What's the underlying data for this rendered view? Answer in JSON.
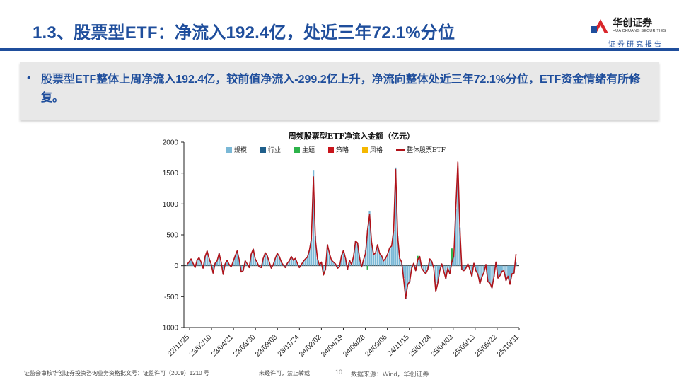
{
  "header": {
    "title": "1.3、股票型ETF：净流入192.4亿，处近三年72.1%分位",
    "logo_cn": "华创证券",
    "logo_en": "HUA CHUANG SECURITIES",
    "subtag": "证券研究报告",
    "colors": {
      "brand": "#1f4e9c",
      "logo_red": "#d9262b"
    }
  },
  "summary": {
    "bullet": "•",
    "text": "股票型ETF整体上周净流入192.4亿，较前值净流入-299.2亿上升，净流向整体处近三年72.1%分位，ETF资金情绪有所修复。"
  },
  "footer": {
    "license": "证监会审核华创证券投资咨询业务资格批文号：证监许可（2009）1210 号",
    "notice": "未经许可，禁止转载",
    "page": "10",
    "source": "数据来源：Wind，华创证券"
  },
  "chart_data": {
    "type": "bar",
    "title": "周频股票型ETF净流入金额（亿元）",
    "ylim": [
      -1000,
      2000
    ],
    "yticks": [
      -1000,
      -500,
      0,
      500,
      1000,
      1500,
      2000
    ],
    "x_tick_labels": [
      "22/11/25",
      "23/02/10",
      "23/04/21",
      "23/06/30",
      "23/09/08",
      "23/11/24",
      "24/02/02",
      "24/04/19",
      "24/06/28",
      "24/09/06",
      "24/11/15",
      "25/01/24",
      "25/04/03",
      "25/06/13",
      "25/08/22",
      "25/10/31"
    ],
    "legend_position": "top",
    "grid": false,
    "series": [
      {
        "name": "规模",
        "kind": "bar",
        "color": "#7ab8d6",
        "values": [
          20,
          60,
          110,
          40,
          -30,
          90,
          130,
          60,
          -40,
          150,
          240,
          120,
          30,
          -120,
          40,
          80,
          200,
          60,
          -140,
          30,
          90,
          20,
          -20,
          70,
          160,
          240,
          100,
          -100,
          -80,
          80,
          30,
          -30,
          190,
          270,
          110,
          50,
          -20,
          -30,
          120,
          210,
          160,
          60,
          -40,
          20,
          120,
          200,
          150,
          60,
          10,
          -30,
          40,
          80,
          150,
          90,
          120,
          40,
          -30,
          20,
          70,
          110,
          140,
          250,
          440,
          1540,
          480,
          120,
          10,
          60,
          -90,
          -60,
          340,
          200,
          90,
          60,
          30,
          -40,
          -20,
          160,
          250,
          120,
          -60,
          90,
          20,
          150,
          400,
          370,
          130,
          -20,
          100,
          260,
          580,
          890,
          380,
          180,
          210,
          340,
          200,
          160,
          80,
          120,
          190,
          290,
          320,
          580,
          1590,
          480,
          120,
          60,
          -200,
          -520,
          -300,
          -260,
          -40,
          40,
          -80,
          100,
          90,
          -40,
          -90,
          -130,
          -60,
          110,
          70,
          -40,
          -400,
          -280,
          -80,
          30,
          -90,
          -210,
          -40,
          -130,
          60,
          160,
          920,
          1570,
          620,
          -60,
          -80,
          -40,
          30,
          -60,
          -170,
          40,
          -80,
          -140,
          -290,
          -180,
          -110,
          20,
          -260,
          -280,
          -360,
          -180,
          60,
          -200,
          -160,
          -90,
          -80,
          -240,
          -170,
          -300,
          -130,
          -120,
          50
        ],
        "note": "近似读数"
      },
      {
        "name": "行业",
        "kind": "bar",
        "color": "#1f5f8b",
        "values": [
          0,
          0,
          0,
          0,
          0,
          0,
          0,
          0,
          0,
          0,
          0,
          0,
          0,
          0,
          0,
          0,
          0,
          0,
          0,
          0,
          0,
          0,
          0,
          0,
          0,
          0,
          0,
          0,
          0,
          0,
          0,
          0,
          0,
          0,
          0,
          0,
          0,
          0,
          0,
          0,
          0,
          0,
          0,
          0,
          0,
          0,
          0,
          0,
          0,
          0,
          0,
          0,
          0,
          0,
          0,
          0,
          0,
          0,
          0,
          0,
          0,
          0,
          0,
          0,
          0,
          0,
          0,
          0,
          0,
          0,
          0,
          0,
          0,
          0,
          0,
          0,
          0,
          0,
          0,
          0,
          0,
          0,
          0,
          0,
          0,
          0,
          0,
          0,
          0,
          0,
          0,
          0,
          0,
          0,
          0,
          0,
          0,
          0,
          0,
          0,
          0,
          0,
          0,
          0,
          0,
          0,
          0,
          0,
          0,
          -20,
          -10,
          0,
          0,
          0,
          0,
          0,
          0,
          0,
          0,
          0,
          0,
          0,
          0,
          0,
          0,
          0,
          0,
          0,
          0,
          0,
          0,
          0,
          0,
          0,
          0,
          0,
          0,
          0,
          0,
          0,
          0,
          0,
          0,
          0,
          0,
          0,
          0,
          0,
          0,
          0,
          0,
          0,
          0,
          0,
          0,
          20,
          0,
          0,
          0,
          0,
          0,
          0,
          0,
          0,
          0,
          0,
          0,
          0,
          0,
          0,
          0,
          0,
          0,
          0,
          0
        ]
      },
      {
        "name": "主题",
        "kind": "bar",
        "color": "#2db34a",
        "values": [
          0,
          0,
          0,
          0,
          0,
          0,
          0,
          0,
          0,
          0,
          0,
          0,
          0,
          0,
          0,
          0,
          0,
          0,
          0,
          0,
          0,
          0,
          0,
          0,
          0,
          0,
          0,
          0,
          0,
          0,
          0,
          0,
          0,
          0,
          0,
          0,
          0,
          0,
          0,
          0,
          0,
          0,
          0,
          0,
          0,
          0,
          0,
          0,
          0,
          0,
          0,
          0,
          0,
          0,
          0,
          0,
          0,
          0,
          0,
          0,
          0,
          0,
          0,
          0,
          0,
          0,
          0,
          0,
          -60,
          0,
          0,
          0,
          0,
          0,
          0,
          0,
          0,
          0,
          0,
          0,
          0,
          0,
          0,
          0,
          0,
          0,
          0,
          0,
          0,
          0,
          -60,
          0,
          0,
          0,
          0,
          0,
          0,
          0,
          0,
          0,
          0,
          0,
          0,
          0,
          0,
          0,
          0,
          0,
          0,
          0,
          0,
          0,
          0,
          0,
          0,
          60,
          0,
          0,
          0,
          0,
          0,
          0,
          0,
          0,
          0,
          0,
          0,
          0,
          0,
          0,
          0,
          0,
          220,
          0,
          0,
          0,
          0,
          0,
          0,
          0,
          0,
          0,
          0,
          0,
          0,
          0,
          0,
          0,
          0,
          0,
          0,
          0,
          0,
          0,
          0,
          0,
          0,
          0,
          0,
          0,
          0,
          0,
          0,
          0,
          0,
          0,
          0,
          0,
          0,
          0,
          0,
          0,
          0,
          0,
          0,
          0,
          0,
          0
        ]
      },
      {
        "name": "策略",
        "kind": "bar",
        "color": "#c8141b",
        "values": [
          0,
          0,
          0,
          0,
          0,
          0,
          0,
          0,
          0,
          0,
          0,
          0,
          0,
          0,
          0,
          0,
          0,
          0,
          0,
          0,
          0,
          0,
          0,
          0,
          0,
          0,
          0,
          0,
          0,
          0,
          0,
          0,
          0,
          0,
          0,
          0,
          0,
          0,
          0,
          0,
          0,
          0,
          0,
          0,
          0,
          0,
          0,
          0,
          0,
          0,
          0,
          0,
          0,
          0,
          0,
          0,
          0,
          0,
          0,
          0,
          0,
          0,
          0,
          0,
          0,
          0,
          0,
          0,
          0,
          0,
          0,
          0,
          0,
          0,
          0,
          0,
          0,
          0,
          0,
          0,
          0,
          0,
          0,
          0,
          0,
          0,
          0,
          0,
          0,
          0,
          0,
          0,
          0,
          0,
          0,
          0,
          0,
          0,
          0,
          0,
          0,
          0,
          0,
          0,
          0,
          0,
          0,
          0,
          0,
          0,
          0,
          0,
          0,
          0,
          0,
          0,
          0,
          0,
          0,
          0,
          0,
          0,
          0,
          0,
          0,
          0,
          0,
          0,
          0,
          0,
          0,
          0,
          0,
          0,
          0,
          0,
          0,
          0,
          0,
          0,
          0,
          0,
          0,
          0,
          0,
          0,
          0,
          0,
          0,
          0,
          0,
          0,
          0,
          0,
          0,
          0,
          0,
          0,
          0,
          0,
          0,
          0,
          0,
          0,
          0,
          0,
          0,
          0,
          0,
          0,
          0,
          0,
          0,
          0,
          0,
          0,
          0
        ]
      },
      {
        "name": "风格",
        "kind": "bar",
        "color": "#f5b700",
        "values": [
          0,
          0,
          0,
          0,
          0,
          0,
          0,
          0,
          0,
          0,
          0,
          0,
          0,
          0,
          0,
          0,
          0,
          0,
          0,
          0,
          0,
          0,
          0,
          0,
          0,
          0,
          0,
          0,
          0,
          0,
          0,
          0,
          0,
          0,
          0,
          0,
          0,
          0,
          0,
          0,
          0,
          0,
          0,
          0,
          0,
          0,
          0,
          0,
          0,
          0,
          0,
          0,
          0,
          0,
          0,
          0,
          0,
          0,
          0,
          0,
          0,
          0,
          0,
          0,
          0,
          0,
          0,
          0,
          0,
          0,
          0,
          0,
          0,
          0,
          0,
          0,
          0,
          0,
          0,
          0,
          0,
          0,
          0,
          0,
          0,
          0,
          0,
          0,
          0,
          0,
          0,
          0,
          0,
          0,
          0,
          0,
          0,
          0,
          0,
          0,
          0,
          0,
          0,
          0,
          0,
          0,
          0,
          0,
          0,
          0,
          0,
          0,
          0,
          0,
          0,
          0,
          0,
          0,
          0,
          0,
          0,
          0,
          0,
          0,
          0,
          0,
          0,
          0,
          0,
          0,
          0,
          0,
          0,
          0,
          0,
          0,
          0,
          0,
          0,
          0,
          0,
          0,
          0,
          0,
          0,
          0,
          0,
          0,
          0,
          0,
          0,
          0,
          0,
          0,
          0,
          0,
          0,
          0,
          0,
          0,
          0,
          0,
          0,
          0,
          0,
          0,
          0,
          0,
          0,
          0,
          0,
          0,
          0,
          0,
          0,
          0,
          0
        ]
      },
      {
        "name": "整体股票ETF",
        "kind": "line",
        "color": "#b01219",
        "values": [
          20,
          60,
          110,
          40,
          -30,
          90,
          130,
          60,
          -40,
          150,
          240,
          120,
          30,
          -120,
          40,
          80,
          200,
          60,
          -140,
          30,
          90,
          20,
          -20,
          70,
          160,
          240,
          100,
          -100,
          -80,
          80,
          30,
          -30,
          190,
          270,
          110,
          50,
          -20,
          -30,
          120,
          210,
          160,
          60,
          -40,
          20,
          120,
          200,
          150,
          60,
          10,
          -30,
          40,
          80,
          150,
          90,
          120,
          40,
          -30,
          20,
          70,
          110,
          140,
          250,
          440,
          1440,
          420,
          120,
          10,
          60,
          -150,
          -60,
          340,
          200,
          90,
          60,
          30,
          -40,
          -20,
          160,
          250,
          120,
          -60,
          90,
          20,
          150,
          400,
          370,
          130,
          -20,
          100,
          200,
          580,
          830,
          380,
          180,
          210,
          340,
          200,
          160,
          80,
          120,
          190,
          290,
          320,
          580,
          1560,
          480,
          120,
          60,
          -220,
          -530,
          -300,
          -260,
          -40,
          40,
          -80,
          100,
          150,
          -40,
          -90,
          -130,
          -60,
          110,
          70,
          -40,
          -420,
          -280,
          -80,
          30,
          -90,
          -210,
          -40,
          -130,
          60,
          160,
          940,
          1680,
          620,
          -60,
          -80,
          -40,
          30,
          -60,
          -170,
          40,
          -80,
          -140,
          -290,
          -180,
          -110,
          20,
          -260,
          -280,
          -360,
          -180,
          60,
          -200,
          -160,
          -90,
          -80,
          -240,
          -170,
          -300,
          -130,
          -120,
          190
        ]
      }
    ]
  }
}
